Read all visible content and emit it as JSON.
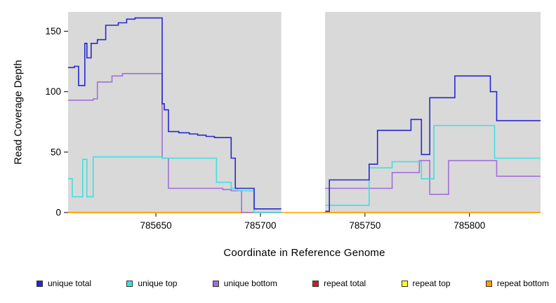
{
  "chart_data": {
    "type": "line",
    "step": true,
    "title": "",
    "xlabel": "Coordinate in Reference Genome",
    "ylabel": "Read Coverage Depth",
    "xlim": [
      785608,
      785834
    ],
    "ylim": [
      0,
      166
    ],
    "x_ticks": [
      785650,
      785700,
      785750,
      785800
    ],
    "y_ticks": [
      0,
      50,
      100,
      150
    ],
    "grid": false,
    "plot_bg": "#d9d9d9",
    "masked_region": {
      "from": 785710,
      "to": 785731,
      "color": "#ffffff"
    },
    "legend_position": "bottom",
    "series": [
      {
        "name": "unique total",
        "color": "#2727cf",
        "z": 6,
        "segments": [
          [
            [
              785608,
              120
            ],
            [
              785611,
              121
            ],
            [
              785613,
              105
            ],
            [
              785616,
              140
            ],
            [
              785617,
              128
            ],
            [
              785619,
              140
            ],
            [
              785622,
              143
            ],
            [
              785626,
              155
            ],
            [
              785632,
              157
            ],
            [
              785636,
              160
            ],
            [
              785640,
              161
            ],
            [
              785653,
              90
            ],
            [
              785654,
              85
            ],
            [
              785656,
              67
            ],
            [
              785661,
              66
            ],
            [
              785666,
              65
            ],
            [
              785670,
              64
            ],
            [
              785674,
              63
            ],
            [
              785678,
              62
            ],
            [
              785686,
              45
            ],
            [
              785688,
              20
            ],
            [
              785697,
              3
            ],
            [
              785710,
              3
            ]
          ],
          [
            [
              785731,
              1
            ],
            [
              785733,
              27
            ],
            [
              785752,
              40
            ],
            [
              785756,
              68
            ],
            [
              785772,
              77
            ],
            [
              785777,
              48
            ],
            [
              785781,
              95
            ],
            [
              785793,
              113
            ],
            [
              785810,
              100
            ],
            [
              785813,
              76
            ],
            [
              785834,
              76
            ]
          ]
        ]
      },
      {
        "name": "unique top",
        "color": "#3fe0e0",
        "z": 5,
        "segments": [
          [
            [
              785608,
              28
            ],
            [
              785610,
              13
            ],
            [
              785615,
              44
            ],
            [
              785617,
              13
            ],
            [
              785620,
              46
            ],
            [
              785653,
              45
            ],
            [
              785679,
              25
            ],
            [
              785686,
              20
            ],
            [
              785689,
              18
            ],
            [
              785697,
              0
            ],
            [
              785710,
              0
            ]
          ],
          [
            [
              785731,
              6
            ],
            [
              785752,
              37
            ],
            [
              785763,
              42
            ],
            [
              785777,
              28
            ],
            [
              785783,
              72
            ],
            [
              785810,
              72
            ],
            [
              785812,
              45
            ],
            [
              785834,
              45
            ]
          ]
        ]
      },
      {
        "name": "unique bottom",
        "color": "#a070d8",
        "z": 4,
        "segments": [
          [
            [
              785608,
              93
            ],
            [
              785620,
              94
            ],
            [
              785622,
              108
            ],
            [
              785629,
              113
            ],
            [
              785634,
              115
            ],
            [
              785653,
              45
            ],
            [
              785656,
              20
            ],
            [
              785682,
              19
            ],
            [
              785686,
              18
            ],
            [
              785691,
              0
            ],
            [
              785710,
              0
            ]
          ],
          [
            [
              785731,
              20
            ],
            [
              785763,
              33
            ],
            [
              785776,
              43
            ],
            [
              785781,
              15
            ],
            [
              785790,
              43
            ],
            [
              785813,
              30
            ],
            [
              785834,
              30
            ]
          ]
        ]
      },
      {
        "name": "repeat total",
        "color": "#cc2020",
        "z": 1,
        "segments": [
          [
            [
              785608,
              0
            ],
            [
              785710,
              0
            ]
          ],
          [
            [
              785731,
              0
            ],
            [
              785834,
              0
            ]
          ]
        ]
      },
      {
        "name": "repeat top",
        "color": "#ffff2a",
        "z": 2,
        "segments": [
          [
            [
              785608,
              0
            ],
            [
              785710,
              0
            ]
          ],
          [
            [
              785731,
              0
            ],
            [
              785834,
              0
            ]
          ]
        ]
      },
      {
        "name": "repeat bottom",
        "color": "#ff9d00",
        "z": 3,
        "segments": [
          [
            [
              785608,
              0
            ],
            [
              785834,
              0
            ]
          ]
        ]
      }
    ]
  }
}
